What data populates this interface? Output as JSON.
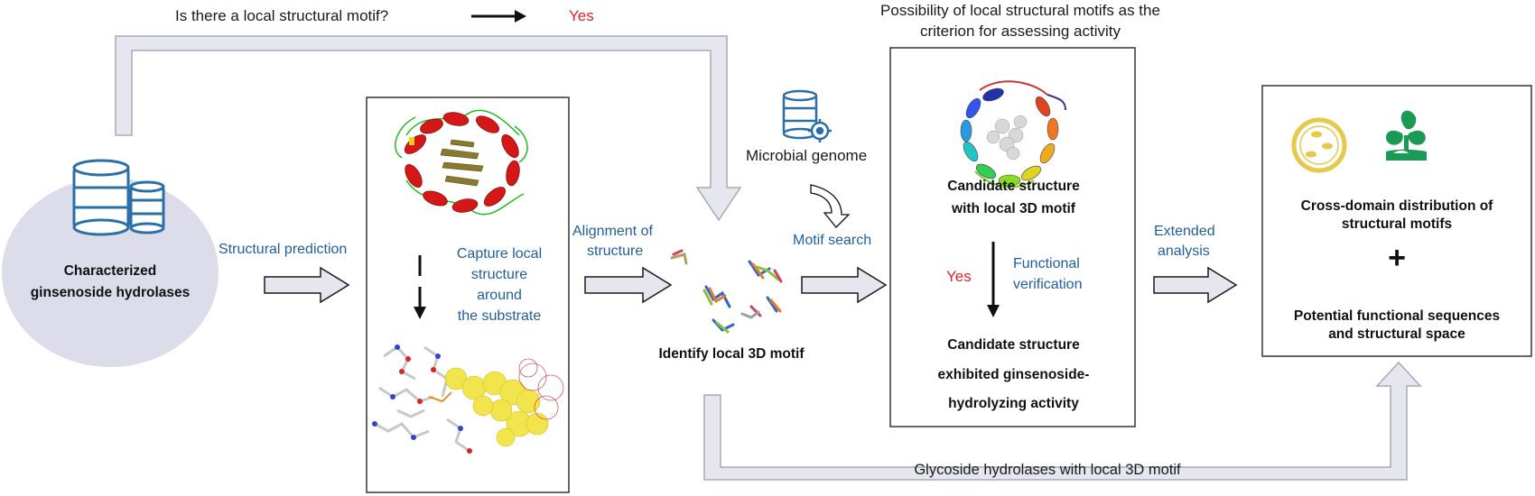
{
  "top": {
    "question": "Is there a local structural motif?",
    "answer": "Yes",
    "possibility_line1": "Possibility of local structural motifs as the",
    "possibility_line2": "criterion for assessing activity"
  },
  "database": {
    "label_line1": "Characterized",
    "label_line2": "ginsenoside hydrolases",
    "icon": "database-icon"
  },
  "step_labels": {
    "structural_prediction": "Structural  prediction",
    "alignment_line1": "Alignment of",
    "alignment_line2": "structure",
    "motif_search": "Motif search",
    "extended_line1": "Extended",
    "extended_line2": "analysis"
  },
  "capture": {
    "line1": "Capture local",
    "line2": "structure",
    "line3": "around",
    "line4": "the substrate"
  },
  "microbial": {
    "label": "Microbial genome",
    "icon": "database-gear-icon"
  },
  "motif": {
    "label": "Identify local 3D motif"
  },
  "candidate": {
    "line1": "Candidate structure",
    "line2": "with local 3D motif",
    "yes": "Yes",
    "verify_line1": "Functional",
    "verify_line2": "verification",
    "result_line1": "Candidate structure",
    "result_line2": "exhibited ginsenoside-",
    "result_line3": "hydrolyzing activity"
  },
  "outcome": {
    "line1": "Cross-domain distribution of",
    "line2": "structural motifs",
    "plus": "+",
    "line3": "Potential functional sequences",
    "line4": "and structural space",
    "icons": [
      "microbe-cell-icon",
      "plant-seedling-icon"
    ]
  },
  "bottom": {
    "label": "Glycoside hydrolases with local 3D motif"
  },
  "colors": {
    "blue_text": "#1f5f9f",
    "red_text": "#e8202a",
    "arrow_fill": "#e6e6ef",
    "ellipse_fill": "#dcdcea",
    "icon_blue": "#2a6fa8",
    "plant_green": "#1a9a55",
    "microbe_yellow": "#e6c84a"
  }
}
